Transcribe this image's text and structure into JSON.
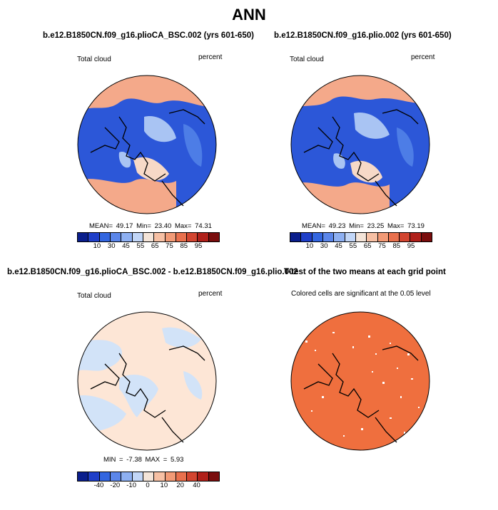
{
  "title": "ANN",
  "panels": [
    {
      "id": "ctrl",
      "title": "b.e12.B1850CN.f09_g16.plioCA_BSC.002 (yrs 601-650)",
      "left_label": "Total cloud",
      "right_label": "percent",
      "stats": {
        "mean_label": "MEAN=",
        "mean": "49.17",
        "min_label": "Min=",
        "min": "23.40",
        "max_label": "Max=",
        "max": "74.31"
      },
      "colorbar": {
        "colors": [
          "#0a1e8c",
          "#1f3fc9",
          "#3366e0",
          "#5b86ea",
          "#8eb0f2",
          "#c2d6f7",
          "#f4e4d8",
          "#f7c0a4",
          "#f29a76",
          "#e9704d",
          "#d34530",
          "#b0201a",
          "#7a0d0d"
        ],
        "ticks": [
          "10",
          "30",
          "45",
          "55",
          "65",
          "75",
          "85",
          "95"
        ]
      }
    },
    {
      "id": "exp",
      "title": "b.e12.B1850CN.f09_g16.plio.002 (yrs 601-650)",
      "left_label": "Total cloud",
      "right_label": "percent",
      "stats": {
        "mean_label": "MEAN=",
        "mean": "49.23",
        "min_label": "Min=",
        "min": "23.25",
        "max_label": "Max=",
        "max": "73.19"
      },
      "colorbar": {
        "colors": [
          "#0a1e8c",
          "#1f3fc9",
          "#3366e0",
          "#5b86ea",
          "#8eb0f2",
          "#c2d6f7",
          "#f4e4d8",
          "#f7c0a4",
          "#f29a76",
          "#e9704d",
          "#d34530",
          "#b0201a",
          "#7a0d0d"
        ],
        "ticks": [
          "10",
          "30",
          "45",
          "55",
          "65",
          "75",
          "85",
          "95"
        ]
      }
    },
    {
      "id": "diff",
      "title": "b.e12.B1850CN.f09_g16.plioCA_BSC.002 - b.e12.B1850CN.f09_g16.plio.002",
      "left_label": "Total cloud",
      "right_label": "percent",
      "stats": {
        "min_label": "MIN =",
        "min": "-7.38",
        "max_label": "MAX =",
        "max": "5.93"
      },
      "colorbar": {
        "colors": [
          "#0a1e8c",
          "#1f3fc9",
          "#3366e0",
          "#5b86ea",
          "#8eb0f2",
          "#c2d6f7",
          "#f4e4d8",
          "#f7c0a4",
          "#f29a76",
          "#e9704d",
          "#d34530",
          "#b0201a",
          "#7a0d0d"
        ],
        "ticks": [
          "-40",
          "-20",
          "-10",
          "0",
          "10",
          "20",
          "40"
        ]
      }
    },
    {
      "id": "ttest",
      "title": "T-test of the two means at each grid point",
      "caption": "Colored cells are significant at the 0.05 level"
    }
  ],
  "colors": {
    "blue_dark": "#2c57d8",
    "blue_mid": "#4d7de6",
    "blue_light": "#a9c4f3",
    "peach_light": "#f7d9c7",
    "salmon": "#f4a98a",
    "diff_peach": "#fde6d6",
    "diff_blue": "#d2e3f8",
    "ttest_orange": "#ef6f3e"
  }
}
